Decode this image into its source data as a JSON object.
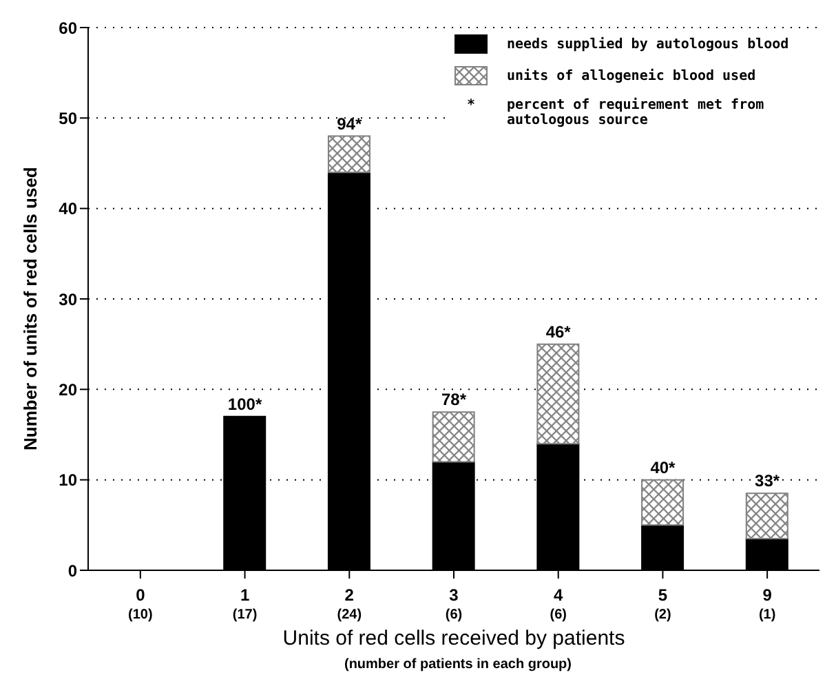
{
  "chart_data": {
    "type": "bar",
    "stacked": true,
    "categories": [
      "0\n(10)",
      "1\n(17)",
      "2\n(24)",
      "3\n(6)",
      "4\n(6)",
      "5\n(2)",
      "9\n(1)"
    ],
    "series": [
      {
        "name": "needs supplied by autologous blood",
        "color": "#000000",
        "values": [
          0,
          17,
          44,
          12,
          14,
          5,
          3.5
        ]
      },
      {
        "name": "units of allogeneic blood used",
        "color": "#808080",
        "values": [
          0,
          0,
          4,
          5.5,
          11,
          5,
          5
        ]
      }
    ],
    "xlabel": "Units of red cells received by patients",
    "ylabel": "Number of units of red cells used",
    "annotations": [
      "(number of patients in each group)",
      "*     percent of requirement met from autologous source",
      {
        "text": "100*",
        "x": "1\n(17)",
        "y": 17
      },
      {
        "text": "94*",
        "x": "2\n(24)",
        "y": 48
      },
      {
        "text": "78*",
        "x": "3\n(6)",
        "y": 17.5
      },
      {
        "text": "46*",
        "x": "4\n(6)",
        "y": 25
      },
      {
        "text": "40*",
        "x": "5\n(2)",
        "y": 10
      },
      {
        "text": "33*",
        "x": "9\n(1)",
        "y": 8.5
      }
    ],
    "ylim": [
      0,
      60
    ],
    "yticks": [
      0,
      10,
      20,
      30,
      40,
      50,
      60
    ],
    "grid": "y",
    "line_style": "dotted",
    "legend": "top right"
  }
}
